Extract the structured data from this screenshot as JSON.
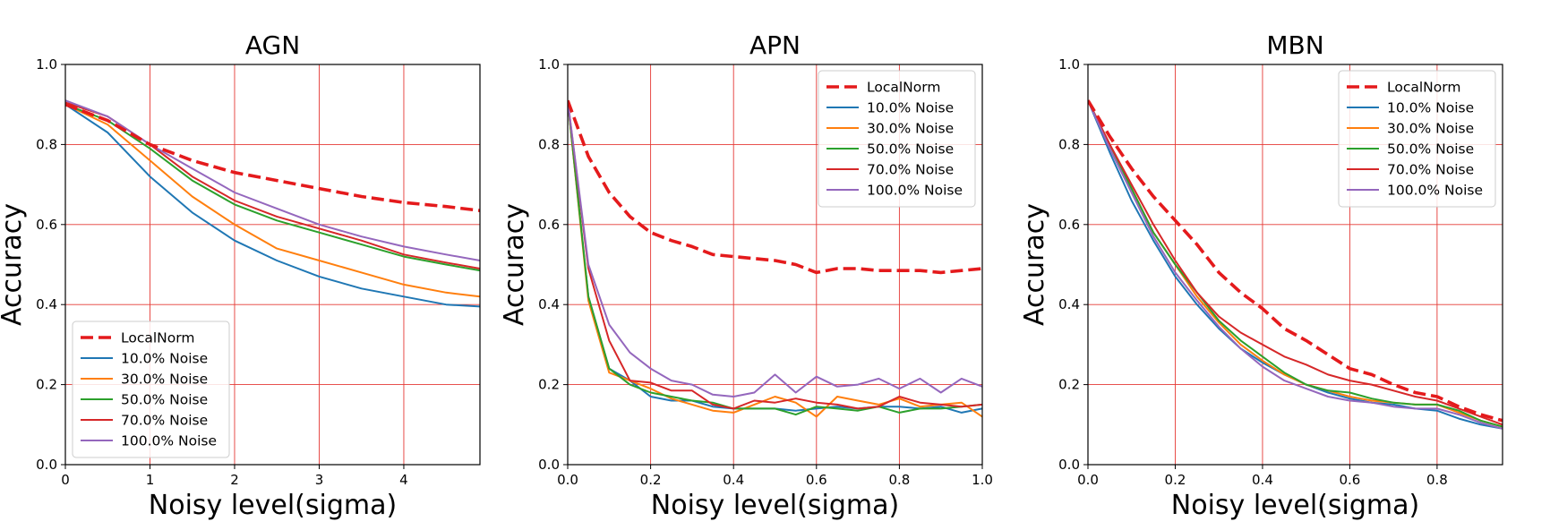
{
  "chart_data": [
    {
      "type": "line",
      "title": "AGN",
      "xlabel": "Noisy level(sigma)",
      "ylabel": "Accuracy",
      "xlim": [
        0,
        4.9
      ],
      "ylim": [
        0,
        1.0
      ],
      "xticks": [
        0,
        1,
        2,
        3,
        4
      ],
      "xtick_labels": [
        "0",
        "1",
        "2",
        "3",
        "4"
      ],
      "yticks": [
        0,
        0.2,
        0.4,
        0.6,
        0.8,
        1.0
      ],
      "ytick_labels": [
        "0.0",
        "0.2",
        "0.4",
        "0.6",
        "0.8",
        "1.0"
      ],
      "grid": true,
      "legend_position": "lower-left",
      "x": [
        0,
        0.5,
        1,
        1.5,
        2,
        2.5,
        3,
        3.5,
        4,
        4.5,
        4.9
      ],
      "series": [
        {
          "name": "LocalNorm",
          "color": "#e41a1c",
          "dashed": true,
          "values": [
            0.9,
            0.86,
            0.8,
            0.76,
            0.73,
            0.71,
            0.69,
            0.67,
            0.655,
            0.645,
            0.635
          ]
        },
        {
          "name": "10.0% Noise",
          "color": "#1f77b4",
          "dashed": false,
          "values": [
            0.9,
            0.83,
            0.72,
            0.63,
            0.56,
            0.51,
            0.47,
            0.44,
            0.42,
            0.4,
            0.395
          ]
        },
        {
          "name": "30.0% Noise",
          "color": "#ff7f0e",
          "dashed": false,
          "values": [
            0.9,
            0.85,
            0.76,
            0.67,
            0.6,
            0.54,
            0.51,
            0.48,
            0.45,
            0.43,
            0.42
          ]
        },
        {
          "name": "50.0% Noise",
          "color": "#2ca02c",
          "dashed": false,
          "values": [
            0.9,
            0.86,
            0.79,
            0.71,
            0.65,
            0.61,
            0.58,
            0.55,
            0.52,
            0.5,
            0.485
          ]
        },
        {
          "name": "70.0% Noise",
          "color": "#d62728",
          "dashed": false,
          "values": [
            0.905,
            0.87,
            0.8,
            0.72,
            0.66,
            0.62,
            0.59,
            0.56,
            0.525,
            0.505,
            0.49
          ]
        },
        {
          "name": "100.0% Noise",
          "color": "#9467bd",
          "dashed": false,
          "values": [
            0.91,
            0.87,
            0.8,
            0.74,
            0.68,
            0.64,
            0.6,
            0.57,
            0.545,
            0.525,
            0.51
          ]
        }
      ]
    },
    {
      "type": "line",
      "title": "APN",
      "xlabel": "Noisy level(sigma)",
      "ylabel": "Accuracy",
      "xlim": [
        0,
        1.0
      ],
      "ylim": [
        0,
        1.0
      ],
      "xticks": [
        0,
        0.2,
        0.4,
        0.6,
        0.8,
        1.0
      ],
      "xtick_labels": [
        "0.0",
        "0.2",
        "0.4",
        "0.6",
        "0.8",
        "1.0"
      ],
      "yticks": [
        0,
        0.2,
        0.4,
        0.6,
        0.8,
        1.0
      ],
      "ytick_labels": [
        "0.0",
        "0.2",
        "0.4",
        "0.6",
        "0.8",
        "1.0"
      ],
      "grid": true,
      "legend_position": "upper-right",
      "x": [
        0,
        0.05,
        0.1,
        0.15,
        0.2,
        0.25,
        0.3,
        0.35,
        0.4,
        0.45,
        0.5,
        0.55,
        0.6,
        0.65,
        0.7,
        0.75,
        0.8,
        0.85,
        0.9,
        0.95,
        1.0
      ],
      "series": [
        {
          "name": "LocalNorm",
          "color": "#e41a1c",
          "dashed": true,
          "values": [
            0.91,
            0.77,
            0.68,
            0.62,
            0.58,
            0.56,
            0.545,
            0.525,
            0.52,
            0.515,
            0.51,
            0.5,
            0.48,
            0.49,
            0.49,
            0.485,
            0.485,
            0.485,
            0.48,
            0.485,
            0.49
          ]
        },
        {
          "name": "10.0% Noise",
          "color": "#1f77b4",
          "dashed": false,
          "values": [
            0.91,
            0.42,
            0.24,
            0.21,
            0.17,
            0.16,
            0.16,
            0.145,
            0.14,
            0.14,
            0.14,
            0.135,
            0.14,
            0.145,
            0.14,
            0.145,
            0.145,
            0.14,
            0.145,
            0.13,
            0.14
          ]
        },
        {
          "name": "30.0% Noise",
          "color": "#ff7f0e",
          "dashed": false,
          "values": [
            0.91,
            0.41,
            0.23,
            0.21,
            0.19,
            0.165,
            0.15,
            0.135,
            0.13,
            0.15,
            0.17,
            0.155,
            0.12,
            0.17,
            0.16,
            0.15,
            0.165,
            0.145,
            0.15,
            0.155,
            0.12
          ]
        },
        {
          "name": "50.0% Noise",
          "color": "#2ca02c",
          "dashed": false,
          "values": [
            0.91,
            0.42,
            0.24,
            0.2,
            0.18,
            0.17,
            0.16,
            0.155,
            0.14,
            0.14,
            0.14,
            0.125,
            0.145,
            0.14,
            0.135,
            0.145,
            0.13,
            0.14,
            0.14,
            0.145,
            0.15
          ]
        },
        {
          "name": "70.0% Noise",
          "color": "#d62728",
          "dashed": false,
          "values": [
            0.91,
            0.49,
            0.31,
            0.21,
            0.205,
            0.185,
            0.185,
            0.15,
            0.14,
            0.16,
            0.155,
            0.165,
            0.155,
            0.15,
            0.14,
            0.145,
            0.17,
            0.155,
            0.15,
            0.145,
            0.15
          ]
        },
        {
          "name": "100.0% Noise",
          "color": "#9467bd",
          "dashed": false,
          "values": [
            0.91,
            0.5,
            0.35,
            0.28,
            0.24,
            0.21,
            0.2,
            0.175,
            0.17,
            0.18,
            0.225,
            0.18,
            0.22,
            0.195,
            0.2,
            0.215,
            0.19,
            0.215,
            0.18,
            0.215,
            0.195
          ]
        }
      ]
    },
    {
      "type": "line",
      "title": "MBN",
      "xlabel": "Noisy level(sigma)",
      "ylabel": "Accuracy",
      "xlim": [
        0,
        0.95
      ],
      "ylim": [
        0,
        1.0
      ],
      "xticks": [
        0,
        0.2,
        0.4,
        0.6,
        0.8
      ],
      "xtick_labels": [
        "0.0",
        "0.2",
        "0.4",
        "0.6",
        "0.8"
      ],
      "yticks": [
        0,
        0.2,
        0.4,
        0.6,
        0.8,
        1.0
      ],
      "ytick_labels": [
        "0.0",
        "0.2",
        "0.4",
        "0.6",
        "0.8",
        "1.0"
      ],
      "grid": true,
      "legend_position": "upper-right",
      "x": [
        0,
        0.05,
        0.1,
        0.15,
        0.2,
        0.25,
        0.3,
        0.35,
        0.4,
        0.45,
        0.5,
        0.55,
        0.6,
        0.65,
        0.7,
        0.75,
        0.8,
        0.85,
        0.9,
        0.95
      ],
      "series": [
        {
          "name": "LocalNorm",
          "color": "#e41a1c",
          "dashed": true,
          "values": [
            0.91,
            0.82,
            0.74,
            0.67,
            0.61,
            0.55,
            0.48,
            0.43,
            0.39,
            0.34,
            0.31,
            0.275,
            0.24,
            0.225,
            0.2,
            0.18,
            0.17,
            0.145,
            0.125,
            0.11
          ]
        },
        {
          "name": "10.0% Noise",
          "color": "#1f77b4",
          "dashed": false,
          "values": [
            0.91,
            0.78,
            0.66,
            0.56,
            0.47,
            0.4,
            0.34,
            0.29,
            0.255,
            0.225,
            0.2,
            0.18,
            0.165,
            0.155,
            0.15,
            0.14,
            0.135,
            0.115,
            0.1,
            0.09
          ]
        },
        {
          "name": "30.0% Noise",
          "color": "#ff7f0e",
          "dashed": false,
          "values": [
            0.91,
            0.8,
            0.69,
            0.58,
            0.5,
            0.42,
            0.355,
            0.3,
            0.26,
            0.225,
            0.2,
            0.185,
            0.17,
            0.16,
            0.155,
            0.15,
            0.15,
            0.13,
            0.11,
            0.095
          ]
        },
        {
          "name": "50.0% Noise",
          "color": "#2ca02c",
          "dashed": false,
          "values": [
            0.91,
            0.8,
            0.69,
            0.58,
            0.5,
            0.43,
            0.36,
            0.31,
            0.27,
            0.23,
            0.2,
            0.185,
            0.18,
            0.165,
            0.155,
            0.15,
            0.15,
            0.135,
            0.11,
            0.095
          ]
        },
        {
          "name": "70.0% Noise",
          "color": "#d62728",
          "dashed": false,
          "values": [
            0.91,
            0.8,
            0.7,
            0.6,
            0.51,
            0.43,
            0.37,
            0.33,
            0.3,
            0.27,
            0.25,
            0.225,
            0.21,
            0.2,
            0.185,
            0.17,
            0.16,
            0.14,
            0.12,
            0.1
          ]
        },
        {
          "name": "100.0% Noise",
          "color": "#9467bd",
          "dashed": false,
          "values": [
            0.91,
            0.79,
            0.68,
            0.57,
            0.48,
            0.41,
            0.345,
            0.29,
            0.245,
            0.21,
            0.19,
            0.17,
            0.16,
            0.155,
            0.145,
            0.14,
            0.14,
            0.125,
            0.105,
            0.09
          ]
        }
      ]
    }
  ]
}
